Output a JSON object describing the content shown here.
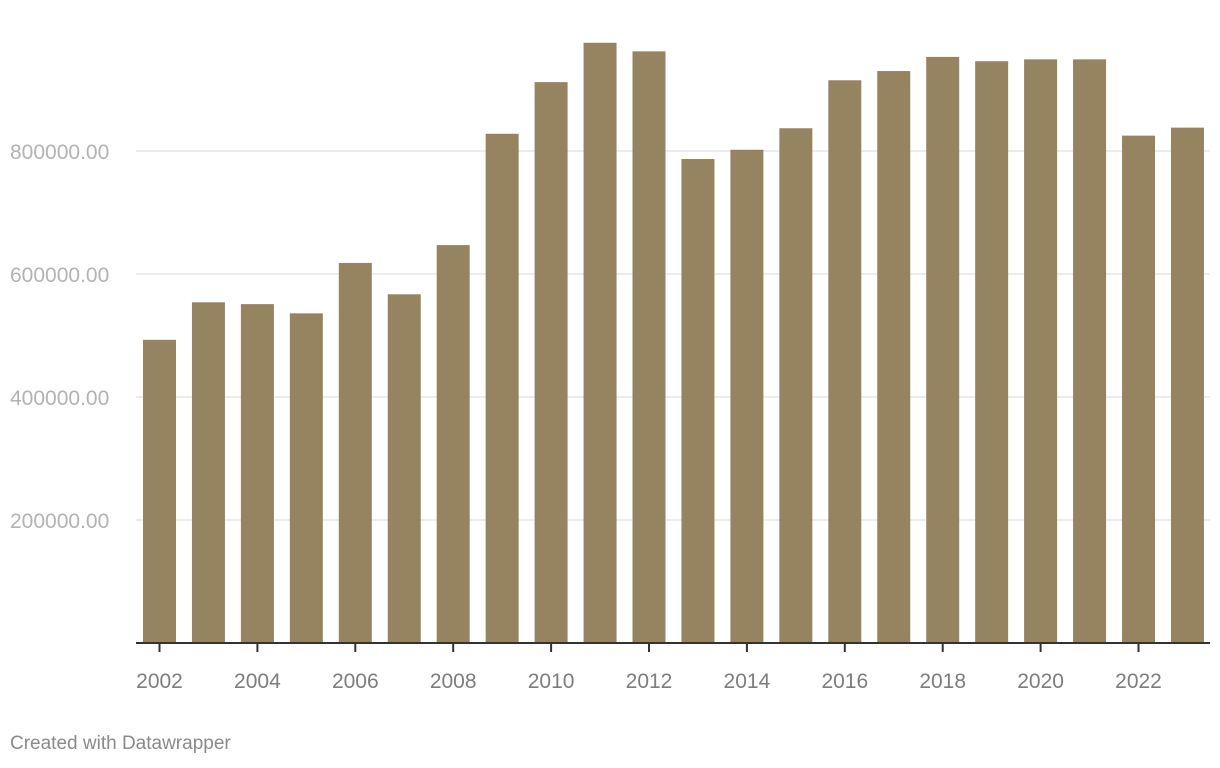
{
  "footer": {
    "credit": "Created with Datawrapper"
  },
  "colors": {
    "bar": "#968460",
    "grid": "#e5e5e5",
    "axis": "#333333"
  },
  "chart_data": {
    "type": "bar",
    "title": "",
    "xlabel": "",
    "ylabel": "",
    "categories": [
      "2002",
      "2003",
      "2004",
      "2005",
      "2006",
      "2007",
      "2008",
      "2009",
      "2010",
      "2011",
      "2012",
      "2013",
      "2014",
      "2015",
      "2016",
      "2017",
      "2018",
      "2019",
      "2020",
      "2021",
      "2022",
      "2023"
    ],
    "values": [
      493000,
      554000,
      551000,
      536000,
      618000,
      567000,
      647000,
      828000,
      912000,
      976000,
      962000,
      787000,
      802000,
      837000,
      915000,
      930000,
      953000,
      946000,
      949000,
      949000,
      825000,
      838000
    ],
    "xtick_labels": [
      "2002",
      "2004",
      "2006",
      "2008",
      "2010",
      "2012",
      "2014",
      "2016",
      "2018",
      "2020",
      "2022"
    ],
    "ytick_labels": [
      "200000.00",
      "400000.00",
      "600000.00",
      "800000.00"
    ],
    "yticks": [
      200000,
      400000,
      600000,
      800000
    ],
    "ylim": [
      0,
      1000000
    ],
    "grid": true
  }
}
